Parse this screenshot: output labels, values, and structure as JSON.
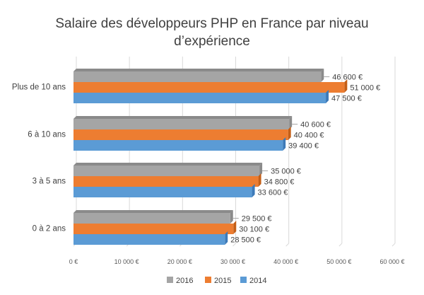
{
  "chart_data": {
    "type": "bar",
    "orientation": "horizontal",
    "title_lines": [
      "Salaire des développeurs PHP en France par niveau",
      "d’expérience"
    ],
    "categories": [
      "Plus de 10 ans",
      "6 à 10 ans",
      "3 à 5 ans",
      "0 à 2 ans"
    ],
    "series": [
      {
        "name": "2016",
        "color": "#a5a5a5",
        "shade": "#8a8a8a",
        "values": [
          46600,
          40600,
          35000,
          29500
        ],
        "labels": [
          "46 600 €",
          "40 600 €",
          "35 000 €",
          "29 500 €"
        ]
      },
      {
        "name": "2015",
        "color": "#ed7d31",
        "shade": "#c45f17",
        "values": [
          51000,
          40400,
          34800,
          30100
        ],
        "labels": [
          "51 000 €",
          "40 400 €",
          "34 800 €",
          "30 100 €"
        ]
      },
      {
        "name": "2014",
        "color": "#5b9bd5",
        "shade": "#3d7ab8",
        "values": [
          47500,
          39400,
          33600,
          28500
        ],
        "labels": [
          "47 500 €",
          "39 400 €",
          "33 600 €",
          "28 500 €"
        ]
      }
    ],
    "xlim": [
      0,
      60000
    ],
    "x_ticks": [
      0,
      10000,
      20000,
      30000,
      40000,
      50000,
      60000
    ],
    "x_tick_labels": [
      "0 €",
      "10 000 €",
      "20 000 €",
      "30 000 €",
      "40 000 €",
      "50 000 €",
      "60 000 €"
    ],
    "grid": true,
    "legend_position": "bottom",
    "legend_order": [
      "2016",
      "2015",
      "2014"
    ]
  }
}
